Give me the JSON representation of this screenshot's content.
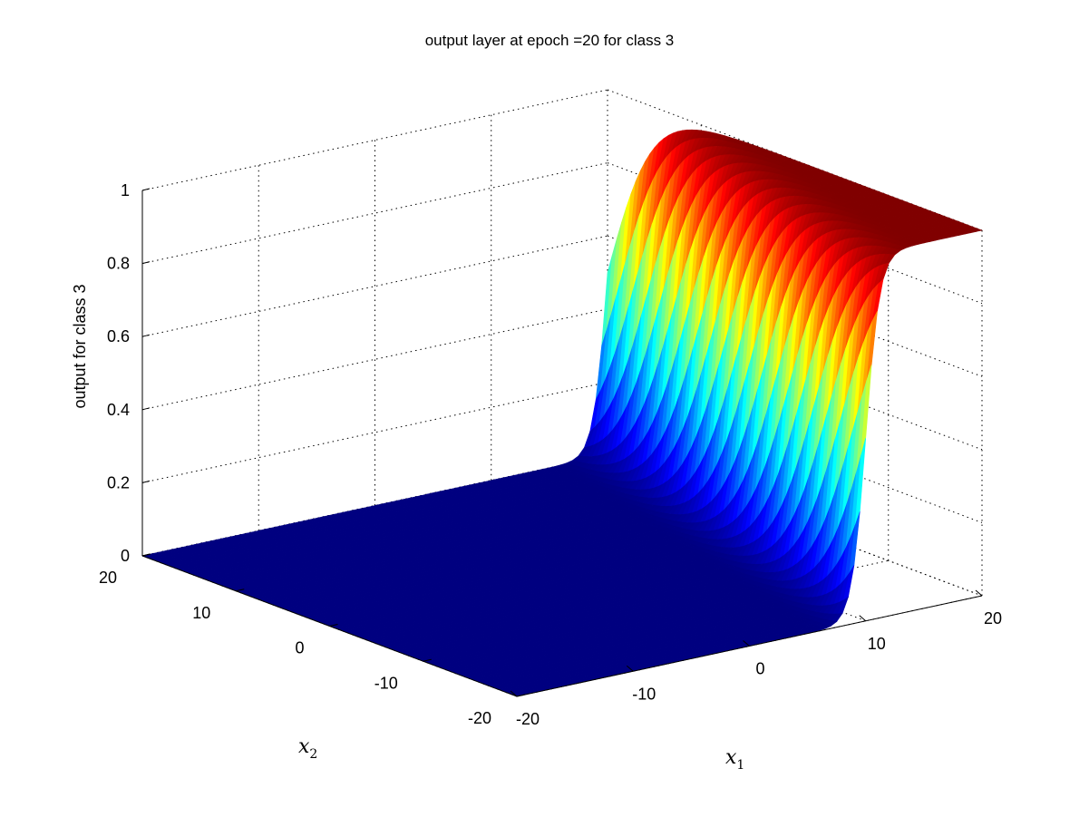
{
  "chart_data": {
    "type": "surface",
    "title": "output layer at epoch =20 for class 3",
    "xlabel": "x",
    "xlabel_sub": "1",
    "ylabel": "x",
    "ylabel_sub": "2",
    "zlabel": "output for class 3",
    "xlim": [
      -20,
      20
    ],
    "ylim": [
      -20,
      20
    ],
    "zlim": [
      0,
      1
    ],
    "x_ticks": [
      "-20",
      "-10",
      "0",
      "10",
      "20"
    ],
    "y_ticks": [
      "-20",
      "-10",
      "0",
      "10",
      "20"
    ],
    "z_ticks": [
      "0",
      "0.2",
      "0.4",
      "0.6",
      "0.8",
      "1"
    ],
    "x_tick_values": [
      -20,
      -10,
      0,
      10,
      20
    ],
    "y_tick_values": [
      -20,
      -10,
      0,
      10,
      20
    ],
    "z_tick_values": [
      0,
      0.2,
      0.4,
      0.6,
      0.8,
      1
    ],
    "grid": true,
    "colormap": "jet",
    "surface_function": "sigmoid step rising from 0 to 1 along x1 near x1 = 10",
    "surface_step_x1": 10,
    "colors": {
      "low": "#00008f",
      "high": "#800000"
    }
  }
}
